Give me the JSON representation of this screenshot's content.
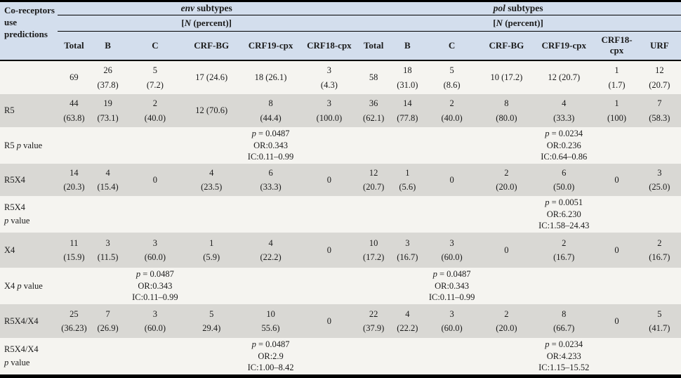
{
  "colors": {
    "header_bg": "#d3deed",
    "row_plain_bg": "#f5f4f0",
    "row_shaded_bg": "#d9d8d4",
    "border": "#000000",
    "text": "#1b1b1b"
  },
  "table": {
    "corner_label": "Co-receptors use predictions",
    "groups": [
      {
        "title_italic": "env",
        "title_rest": " subtypes",
        "subtitle_pre": "[",
        "subtitle_italic": "N",
        "subtitle_rest": " (percent)]",
        "columns": [
          "Total",
          "B",
          "C",
          "CRF-BG",
          "CRF19-cpx",
          "CRF18-cpx"
        ]
      },
      {
        "title_italic": "pol",
        "title_rest": " subtypes",
        "subtitle_pre": "[",
        "subtitle_italic": "N",
        "subtitle_rest": " (percent)]",
        "columns": [
          "Total",
          "B",
          "C",
          "CRF-BG",
          "CRF19-cpx",
          "CRF18-cpx",
          "URF"
        ]
      }
    ],
    "rows": [
      {
        "label": "",
        "shaded": false,
        "cells": [
          "69",
          "26\n(37.8)",
          "5\n(7.2)",
          "17 (24.6)",
          "18 (26.1)",
          "3\n(4.3)",
          "58",
          "18\n(31.0)",
          "5\n(8.6)",
          "10 (17.2)",
          "12 (20.7)",
          "1\n(1.7)",
          "12\n(20.7)"
        ]
      },
      {
        "label": "R5",
        "shaded": true,
        "cells": [
          "44\n(63.8)",
          "19\n(73.1)",
          "2\n(40.0)",
          "12 (70.6)",
          "8\n(44.4)",
          "3\n(100.0)",
          "36\n(62.1)",
          "14\n(77.8)",
          "2\n(40.0)",
          "8\n(80.0)",
          "4\n(33.3)",
          "1\n(100)",
          "7\n(58.3)"
        ]
      },
      {
        "label": "R5 p value",
        "shaded": false,
        "cells": [
          "",
          "",
          "",
          "",
          "p = 0.0487\nOR:0.343\nIC:0.11–0.99",
          "",
          "",
          "",
          "",
          "",
          "p = 0.0234\nOR:0.236\nIC:0.64–0.86",
          "",
          ""
        ]
      },
      {
        "label": "R5X4",
        "shaded": true,
        "cells": [
          "14\n(20.3)",
          "4\n(15.4)",
          "0",
          "4\n(23.5)",
          "6\n(33.3)",
          "0",
          "12\n(20.7)",
          "1\n(5.6)",
          "0",
          "2\n(20.0)",
          "6\n(50.0)",
          "0",
          "3\n(25.0)"
        ]
      },
      {
        "label": "R5X4\np value",
        "shaded": false,
        "cells": [
          "",
          "",
          "",
          "",
          "",
          "",
          "",
          "",
          "",
          "",
          "p = 0.0051\nOR:6.230\nIC:1.58–24.43",
          "",
          ""
        ]
      },
      {
        "label": "X4",
        "shaded": true,
        "cells": [
          "11\n(15.9)",
          "3\n(11.5)",
          "3\n(60.0)",
          "1\n(5.9)",
          "4\n(22.2)",
          "0",
          "10\n(17.2)",
          "3\n(16.7)",
          "3\n(60.0)",
          "0",
          "2\n(16.7)",
          "0",
          "2\n(16.7)"
        ]
      },
      {
        "label": "X4 p value",
        "shaded": false,
        "cells": [
          "",
          "",
          "p = 0.0487\nOR:0.343\nIC:0.11–0.99",
          "",
          "",
          "",
          "",
          "",
          "p = 0.0487\nOR:0.343\nIC:0.11–0.99",
          "",
          "",
          "",
          ""
        ]
      },
      {
        "label": "R5X4/X4",
        "shaded": true,
        "cells": [
          "25\n(36.23)",
          "7\n(26.9)",
          "3\n(60.0)",
          "5\n29.4)",
          "10\n55.6)",
          "0",
          "22\n(37.9)",
          "4\n(22.2)",
          "3\n(60.0)",
          "2\n(20.0)",
          "8\n(66.7)",
          "0",
          "5\n(41.7)"
        ]
      },
      {
        "label": "R5X4/X4\np value",
        "shaded": false,
        "cells": [
          "",
          "",
          "",
          "",
          "p = 0.0487\nOR:2.9\nIC:1.00–8.42",
          "",
          "",
          "",
          "",
          "",
          "p = 0.0234\nOR:4.233\nIC:1.15–15.52",
          "",
          ""
        ]
      }
    ]
  }
}
